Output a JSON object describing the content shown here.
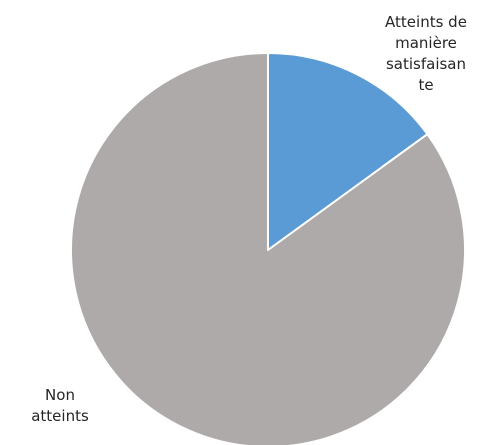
{
  "chart_data": {
    "type": "pie",
    "title": "",
    "slices": [
      {
        "label_lines": [
          "Atteints de",
          "manière",
          "satisfaisan",
          "te"
        ],
        "value": 15,
        "color": "#5b9bd5"
      },
      {
        "label_lines": [
          "Non",
          "atteints"
        ],
        "value": 85,
        "color": "#aeaaaa"
      }
    ],
    "start_angle_deg": 0,
    "direction": "clockwise",
    "slice_border_color": "#ffffff"
  }
}
